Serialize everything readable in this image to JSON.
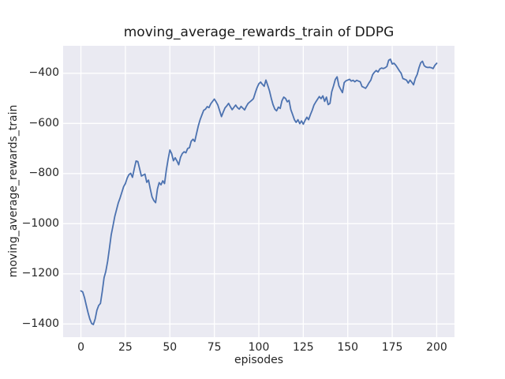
{
  "chart_data": {
    "type": "line",
    "title": "moving_average_rewards_train of DDPG",
    "xlabel": "episodes",
    "ylabel": "moving_average_rewards_train",
    "legend": false,
    "grid": true,
    "xlim": [
      -10,
      210
    ],
    "ylim": [
      -1455,
      -291
    ],
    "xticks": [
      {
        "v": 0,
        "label": "0"
      },
      {
        "v": 25,
        "label": "25"
      },
      {
        "v": 50,
        "label": "50"
      },
      {
        "v": 75,
        "label": "75"
      },
      {
        "v": 100,
        "label": "100"
      },
      {
        "v": 125,
        "label": "125"
      },
      {
        "v": 150,
        "label": "150"
      },
      {
        "v": 175,
        "label": "175"
      },
      {
        "v": 200,
        "label": "200"
      }
    ],
    "yticks": [
      {
        "v": -400,
        "label": "−400"
      },
      {
        "v": -600,
        "label": "−600"
      },
      {
        "v": -800,
        "label": "−800"
      },
      {
        "v": -1000,
        "label": "−1000"
      },
      {
        "v": -1200,
        "label": "−1200"
      },
      {
        "v": -1400,
        "label": "−1400"
      }
    ],
    "series_name": "moving_average_rewards_train",
    "x_start": 0,
    "x_step": 1,
    "values": [
      -1268,
      -1272,
      -1295,
      -1325,
      -1355,
      -1380,
      -1398,
      -1402,
      -1380,
      -1345,
      -1326,
      -1318,
      -1270,
      -1215,
      -1190,
      -1150,
      -1100,
      -1045,
      -1010,
      -972,
      -945,
      -917,
      -898,
      -875,
      -852,
      -840,
      -818,
      -804,
      -799,
      -815,
      -780,
      -750,
      -752,
      -780,
      -810,
      -806,
      -802,
      -835,
      -826,
      -862,
      -893,
      -908,
      -916,
      -862,
      -836,
      -845,
      -829,
      -840,
      -786,
      -744,
      -706,
      -720,
      -749,
      -737,
      -750,
      -765,
      -735,
      -720,
      -713,
      -717,
      -700,
      -697,
      -671,
      -663,
      -672,
      -640,
      -610,
      -585,
      -566,
      -548,
      -543,
      -533,
      -537,
      -522,
      -512,
      -503,
      -514,
      -527,
      -550,
      -573,
      -555,
      -538,
      -530,
      -520,
      -533,
      -545,
      -536,
      -527,
      -537,
      -543,
      -532,
      -539,
      -546,
      -532,
      -520,
      -514,
      -508,
      -501,
      -478,
      -458,
      -442,
      -435,
      -444,
      -452,
      -427,
      -448,
      -470,
      -500,
      -525,
      -543,
      -550,
      -535,
      -540,
      -510,
      -495,
      -500,
      -514,
      -508,
      -545,
      -564,
      -585,
      -596,
      -585,
      -601,
      -590,
      -603,
      -588,
      -575,
      -585,
      -565,
      -548,
      -527,
      -515,
      -504,
      -493,
      -501,
      -490,
      -512,
      -495,
      -525,
      -520,
      -474,
      -450,
      -425,
      -414,
      -450,
      -464,
      -477,
      -437,
      -430,
      -427,
      -424,
      -431,
      -428,
      -434,
      -428,
      -431,
      -434,
      -453,
      -456,
      -460,
      -450,
      -437,
      -427,
      -405,
      -396,
      -389,
      -395,
      -383,
      -379,
      -381,
      -378,
      -373,
      -348,
      -344,
      -363,
      -360,
      -368,
      -379,
      -390,
      -400,
      -421,
      -424,
      -427,
      -439,
      -427,
      -436,
      -446,
      -420,
      -405,
      -379,
      -358,
      -352,
      -370,
      -375,
      -377,
      -376,
      -378,
      -381,
      -368,
      -360
    ],
    "style": {
      "line_color": "#4c72b0",
      "plot_background": "#eaeaf2",
      "grid_color": "#ffffff",
      "text_color": "#262626",
      "figure_background": "#ffffff"
    }
  }
}
